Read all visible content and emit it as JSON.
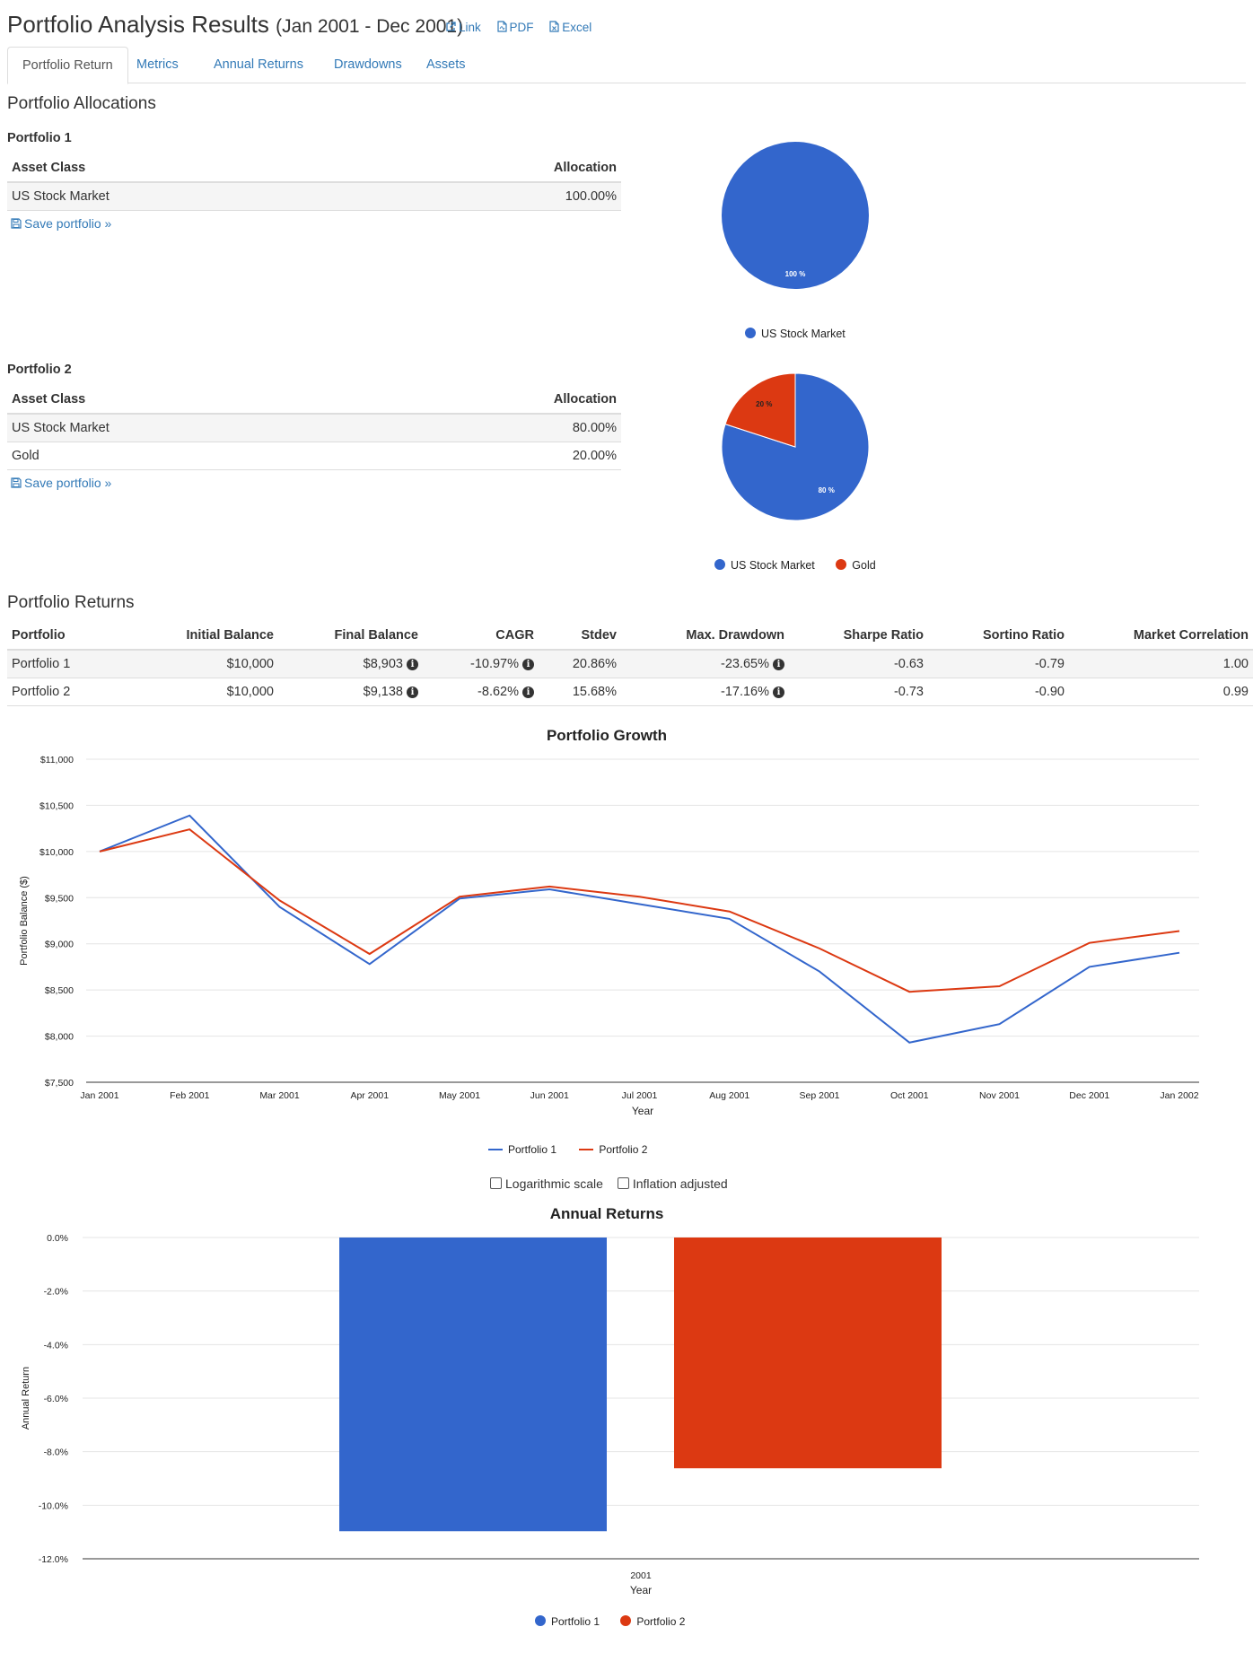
{
  "header": {
    "title": "Portfolio Analysis Results",
    "period": "(Jan 2001 - Dec 2001)",
    "links": [
      {
        "label": "Link",
        "icon": "external-link-icon"
      },
      {
        "label": "PDF",
        "icon": "pdf-file-icon"
      },
      {
        "label": "Excel",
        "icon": "excel-file-icon"
      }
    ]
  },
  "tabs": [
    {
      "label": "Portfolio Return",
      "active": true
    },
    {
      "label": "Metrics"
    },
    {
      "label": "Annual Returns"
    },
    {
      "label": "Drawdowns"
    },
    {
      "label": "Assets"
    }
  ],
  "allocations": {
    "heading": "Portfolio Allocations",
    "col_asset": "Asset Class",
    "col_alloc": "Allocation",
    "save_label": "Save portfolio »",
    "portfolios": [
      {
        "name": "Portfolio 1",
        "rows": [
          {
            "asset": "US Stock Market",
            "allocation": "100.00%"
          }
        ],
        "pie": {
          "slices": [
            {
              "label": "US Stock Market",
              "value": 100,
              "text": "100 %",
              "color": "#3366cc"
            }
          ],
          "legend": [
            "US Stock Market"
          ]
        }
      },
      {
        "name": "Portfolio 2",
        "rows": [
          {
            "asset": "US Stock Market",
            "allocation": "80.00%"
          },
          {
            "asset": "Gold",
            "allocation": "20.00%"
          }
        ],
        "pie": {
          "slices": [
            {
              "label": "US Stock Market",
              "value": 80,
              "text": "80 %",
              "color": "#3366cc"
            },
            {
              "label": "Gold",
              "value": 20,
              "text": "20 %",
              "color": "#dc3912"
            }
          ],
          "legend": [
            "US Stock Market",
            "Gold"
          ]
        }
      }
    ]
  },
  "returns": {
    "heading": "Portfolio Returns",
    "columns": [
      "Portfolio",
      "Initial Balance",
      "Final Balance",
      "CAGR",
      "Stdev",
      "Max. Drawdown",
      "Sharpe Ratio",
      "Sortino Ratio",
      "Market Correlation"
    ],
    "rows": [
      [
        "Portfolio 1",
        "$10,000",
        "$8,903",
        "-10.97%",
        "20.86%",
        "-23.65%",
        "-0.63",
        "-0.79",
        "1.00"
      ],
      [
        "Portfolio 2",
        "$10,000",
        "$9,138",
        "-8.62%",
        "15.68%",
        "-17.16%",
        "-0.73",
        "-0.90",
        "0.99"
      ]
    ]
  },
  "growth_options": {
    "log_label": "Logarithmic scale",
    "inflation_label": "Inflation adjusted"
  },
  "colors": {
    "series1": "#3366cc",
    "series2": "#dc3912",
    "link": "#337ab7"
  },
  "chart_data": [
    {
      "type": "line",
      "title": "Portfolio Growth",
      "xlabel": "Year",
      "ylabel": "Portfolio Balance ($)",
      "x": [
        "Jan 2001",
        "Feb 2001",
        "Mar 2001",
        "Apr 2001",
        "May 2001",
        "Jun 2001",
        "Jul 2001",
        "Aug 2001",
        "Sep 2001",
        "Oct 2001",
        "Nov 2001",
        "Dec 2001",
        "Jan 2002"
      ],
      "yticks": [
        "$7,500",
        "$8,000",
        "$8,500",
        "$9,000",
        "$9,500",
        "$10,000",
        "$10,500",
        "$11,000"
      ],
      "ylim": [
        7500,
        11000
      ],
      "grid": true,
      "legend_position": "bottom",
      "series": [
        {
          "name": "Portfolio 1",
          "color": "#3366cc",
          "values": [
            10000,
            10390,
            9400,
            8780,
            9490,
            9590,
            9430,
            9270,
            8700,
            7930,
            8130,
            8750,
            8903
          ]
        },
        {
          "name": "Portfolio 2",
          "color": "#dc3912",
          "values": [
            10000,
            10240,
            9470,
            8890,
            9510,
            9620,
            9510,
            9350,
            8950,
            8480,
            8540,
            9010,
            9138
          ]
        }
      ]
    },
    {
      "type": "bar",
      "title": "Annual Returns",
      "xlabel": "Year",
      "ylabel": "Annual Return",
      "categories": [
        "2001"
      ],
      "yticks": [
        "0.0%",
        "-2.0%",
        "-4.0%",
        "-6.0%",
        "-8.0%",
        "-10.0%",
        "-12.0%"
      ],
      "ylim": [
        -12,
        0
      ],
      "grid": true,
      "legend_position": "bottom",
      "series": [
        {
          "name": "Portfolio 1",
          "color": "#3366cc",
          "values": [
            -10.97
          ]
        },
        {
          "name": "Portfolio 2",
          "color": "#dc3912",
          "values": [
            -8.62
          ]
        }
      ]
    }
  ]
}
